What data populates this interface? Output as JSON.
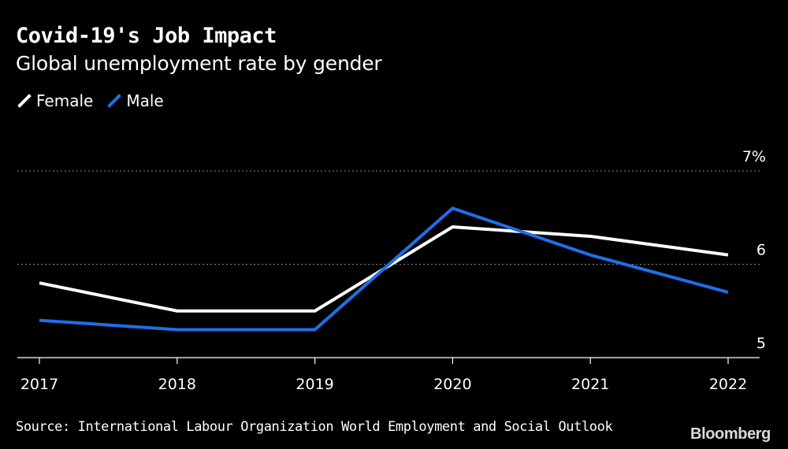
{
  "title": "Covid-19's Job Impact",
  "subtitle": "Global unemployment rate by gender",
  "legend": [
    {
      "label": "Female",
      "color": "#ffffff",
      "icon": "slash-line-icon"
    },
    {
      "label": "Male",
      "color": "#1f6fe8",
      "icon": "slash-line-icon"
    }
  ],
  "source": "Source: International Labour Organization World Employment and Social Outlook",
  "brand": "Bloomberg",
  "chart_data": {
    "type": "line",
    "categories": [
      "2017",
      "2018",
      "2019",
      "2020",
      "2021",
      "2022"
    ],
    "series": [
      {
        "name": "Female",
        "color": "#ffffff",
        "values": [
          5.8,
          5.5,
          5.5,
          6.4,
          6.3,
          6.1
        ]
      },
      {
        "name": "Male",
        "color": "#1f6fe8",
        "values": [
          5.4,
          5.3,
          5.3,
          6.6,
          6.1,
          5.7
        ]
      }
    ],
    "y_ticks": [
      {
        "value": 7,
        "label": "7%"
      },
      {
        "value": 6,
        "label": "6"
      },
      {
        "value": 5,
        "label": "5"
      }
    ],
    "ylim": [
      5,
      7
    ],
    "grid": true,
    "legend_position": "top-left"
  }
}
